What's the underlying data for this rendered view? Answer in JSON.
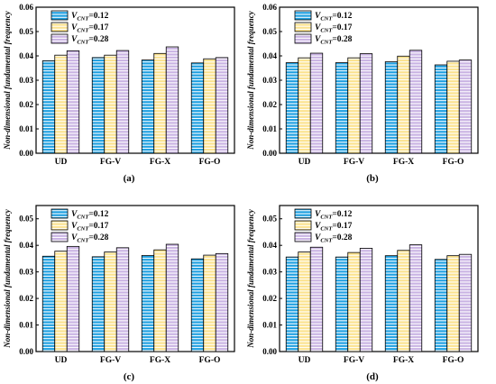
{
  "colors": {
    "series": [
      "#1e9fe0",
      "#fbe28e",
      "#c9b3e3"
    ],
    "stripe": "#ffffff",
    "axis": "#000000"
  },
  "chart_data": [
    {
      "type": "bar",
      "panel_label": "(a)",
      "categories": [
        "UD",
        "FG-V",
        "FG-X",
        "FG-O"
      ],
      "ylabel": "Non-dimensional fundamental frequency",
      "ylim": [
        0,
        0.06
      ],
      "yticks": [
        "0.00",
        "0.01",
        "0.02",
        "0.03",
        "0.04",
        "0.05",
        "0.06"
      ],
      "legend_position": "top-left",
      "series": [
        {
          "name": "V_CNT=0.12",
          "legend_main": "V",
          "legend_sub": "CNT",
          "legend_value": "=0.12",
          "values": [
            0.038,
            0.0393,
            0.0383,
            0.0371
          ]
        },
        {
          "name": "V_CNT=0.17",
          "legend_main": "V",
          "legend_sub": "CNT",
          "legend_value": "=0.17",
          "values": [
            0.0403,
            0.0403,
            0.041,
            0.0388
          ]
        },
        {
          "name": "V_CNT=0.28",
          "legend_main": "V",
          "legend_sub": "CNT",
          "legend_value": "=0.28",
          "values": [
            0.0421,
            0.0422,
            0.0437,
            0.0393
          ]
        }
      ]
    },
    {
      "type": "bar",
      "panel_label": "(b)",
      "categories": [
        "UD",
        "FG-V",
        "FG-X",
        "FG-O"
      ],
      "ylabel": "Non-dimensional fundamental frequency",
      "ylim": [
        0,
        0.06
      ],
      "yticks": [
        "0.00",
        "0.01",
        "0.02",
        "0.03",
        "0.04",
        "0.05",
        "0.06"
      ],
      "legend_position": "top-left",
      "series": [
        {
          "name": "V_CNT=0.12",
          "legend_main": "V",
          "legend_sub": "CNT",
          "legend_value": "=0.12",
          "values": [
            0.0372,
            0.0372,
            0.0376,
            0.0363
          ]
        },
        {
          "name": "V_CNT=0.17",
          "legend_main": "V",
          "legend_sub": "CNT",
          "legend_value": "=0.17",
          "values": [
            0.0392,
            0.0392,
            0.0399,
            0.0378
          ]
        },
        {
          "name": "V_CNT=0.28",
          "legend_main": "V",
          "legend_sub": "CNT",
          "legend_value": "=0.28",
          "values": [
            0.0411,
            0.0409,
            0.0423,
            0.0383
          ]
        }
      ]
    },
    {
      "type": "bar",
      "panel_label": "(c)",
      "categories": [
        "UD",
        "FG-V",
        "FG-X",
        "FG-O"
      ],
      "ylabel": "Non-dimensional fundamental frequency",
      "ylim": [
        0,
        0.055
      ],
      "yticks": [
        "0.00",
        "0.01",
        "0.02",
        "0.03",
        "0.04",
        "0.05"
      ],
      "legend_position": "top-left",
      "series": [
        {
          "name": "V_CNT=0.12",
          "legend_main": "V",
          "legend_sub": "CNT",
          "legend_value": "=0.12",
          "values": [
            0.0359,
            0.0357,
            0.0362,
            0.0349
          ]
        },
        {
          "name": "V_CNT=0.17",
          "legend_main": "V",
          "legend_sub": "CNT",
          "legend_value": "=0.17",
          "values": [
            0.0378,
            0.0375,
            0.0383,
            0.0363
          ]
        },
        {
          "name": "V_CNT=0.28",
          "legend_main": "V",
          "legend_sub": "CNT",
          "legend_value": "=0.28",
          "values": [
            0.0396,
            0.0391,
            0.0404,
            0.0369
          ]
        }
      ]
    },
    {
      "type": "bar",
      "panel_label": "(d)",
      "categories": [
        "UD",
        "FG-V",
        "FG-X",
        "FG-O"
      ],
      "ylabel": "Non-dimensional fundamental frequency",
      "ylim": [
        0,
        0.055
      ],
      "yticks": [
        "0.00",
        "0.01",
        "0.02",
        "0.03",
        "0.04",
        "0.05"
      ],
      "legend_position": "top-left",
      "series": [
        {
          "name": "V_CNT=0.12",
          "legend_main": "V",
          "legend_sub": "CNT",
          "legend_value": "=0.12",
          "values": [
            0.0356,
            0.0356,
            0.0361,
            0.0347
          ]
        },
        {
          "name": "V_CNT=0.17",
          "legend_main": "V",
          "legend_sub": "CNT",
          "legend_value": "=0.17",
          "values": [
            0.0375,
            0.0373,
            0.0381,
            0.0361
          ]
        },
        {
          "name": "V_CNT=0.28",
          "legend_main": "V",
          "legend_sub": "CNT",
          "legend_value": "=0.28",
          "values": [
            0.0393,
            0.0389,
            0.0402,
            0.0366
          ]
        }
      ]
    }
  ]
}
